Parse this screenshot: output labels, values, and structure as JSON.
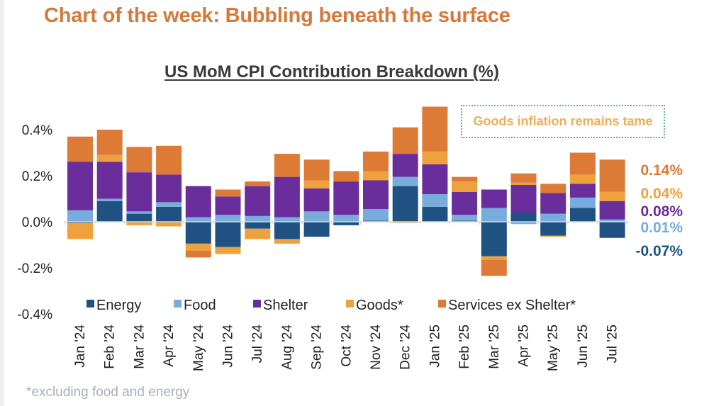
{
  "headline": "Chart of the week: Bubbling beneath the surface",
  "annotation": "Goods inflation remains tame",
  "footnote": "*excluding food and energy",
  "colors": {
    "Energy": "#1f5283",
    "Food": "#77acdd",
    "Shelter": "#6a2d9c",
    "Goods*": "#eea13d",
    "Services ex Shelter*": "#dc7a36",
    "headline": "#d6783a",
    "annotation_text": "#ecae5a",
    "annotation_border": "#5fb287"
  },
  "chart_data": {
    "type": "bar",
    "stacked": true,
    "title": "US MoM CPI Contribution Breakdown (%)",
    "xlabel": "",
    "ylabel": "",
    "ylim": [
      -0.4,
      0.5
    ],
    "yticks": [
      0.4,
      0.2,
      0.0,
      -0.2,
      -0.4
    ],
    "ytick_labels": [
      "0.4%",
      "0.2%",
      "0.0%",
      "-0.2%",
      "-0.4%"
    ],
    "grid": false,
    "legend_position": "bottom",
    "categories": [
      "Jan '24",
      "Feb '24",
      "Mar '24",
      "Apr '24",
      "May '24",
      "Jun '24",
      "Jul '24",
      "Aug '24",
      "Sep '24",
      "Oct '24",
      "Nov '24",
      "Dec '24",
      "Jan '25",
      "Feb '25",
      "Mar '25",
      "Apr '25",
      "May '25",
      "Jun '25",
      "Jul '25"
    ],
    "series": [
      {
        "name": "Energy",
        "values": [
          -0.005,
          0.09,
          0.035,
          0.065,
          -0.095,
          -0.11,
          -0.03,
          -0.075,
          -0.065,
          -0.015,
          0.005,
          0.155,
          0.065,
          0.005,
          -0.15,
          0.04,
          -0.06,
          0.06,
          -0.07
        ]
      },
      {
        "name": "Food",
        "values": [
          0.05,
          0.01,
          0.01,
          0.02,
          0.02,
          0.03,
          0.025,
          0.02,
          0.045,
          0.03,
          0.05,
          0.04,
          0.055,
          0.025,
          0.06,
          -0.01,
          0.035,
          0.045,
          0.01
        ]
      },
      {
        "name": "Shelter",
        "values": [
          0.21,
          0.16,
          0.17,
          0.12,
          0.135,
          0.08,
          0.13,
          0.175,
          0.1,
          0.145,
          0.125,
          0.1,
          0.13,
          0.1,
          0.08,
          0.12,
          0.09,
          0.06,
          0.08
        ]
      },
      {
        "name": "Goods*",
        "values": [
          -0.07,
          0.03,
          -0.015,
          -0.02,
          -0.03,
          -0.03,
          -0.045,
          -0.02,
          0.035,
          0.0,
          0.04,
          -0.005,
          0.055,
          0.045,
          -0.015,
          0.01,
          -0.005,
          0.04,
          0.04
        ]
      },
      {
        "name": "Services ex Shelter*",
        "values": [
          0.11,
          0.11,
          0.11,
          0.125,
          -0.03,
          0.03,
          0.02,
          0.1,
          0.09,
          0.045,
          0.085,
          0.115,
          0.195,
          0.02,
          -0.07,
          0.04,
          0.04,
          0.095,
          0.14
        ]
      }
    ],
    "latest_labels": [
      {
        "series": "Services ex Shelter*",
        "text": "0.14%"
      },
      {
        "series": "Goods*",
        "text": "0.04%"
      },
      {
        "series": "Shelter",
        "text": "0.08%"
      },
      {
        "series": "Food",
        "text": "0.01%"
      },
      {
        "series": "Energy",
        "text": "-0.07%"
      }
    ]
  }
}
